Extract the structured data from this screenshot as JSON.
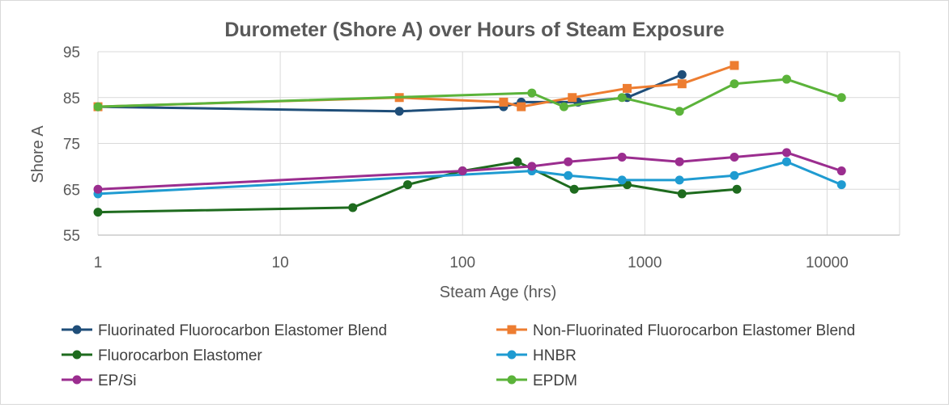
{
  "chart_data": {
    "type": "line",
    "title": "Durometer (Shore A) over Hours of Steam Exposure",
    "xlabel": "Steam Age (hrs)",
    "ylabel": "Shore A",
    "x_scale": "log",
    "xlim": [
      1,
      25000
    ],
    "ylim": [
      55,
      95
    ],
    "x_ticks": [
      1,
      10,
      100,
      1000,
      10000
    ],
    "x_tick_labels": [
      "1",
      "10",
      "100",
      "1000",
      "10000"
    ],
    "y_ticks": [
      55,
      65,
      75,
      85,
      95
    ],
    "y_tick_labels": [
      "55",
      "65",
      "75",
      "85",
      "95"
    ],
    "grid": true,
    "legend_position": "bottom",
    "series": [
      {
        "name": "Fluorinated Fluorocarbon Elastomer Blend",
        "color": "#1f4e79",
        "marker": "circle",
        "points": [
          [
            1,
            83
          ],
          [
            45,
            82
          ],
          [
            168,
            83
          ],
          [
            210,
            84
          ],
          [
            430,
            84
          ],
          [
            800,
            85
          ],
          [
            1600,
            90
          ]
        ]
      },
      {
        "name": "Non-Fluorinated Fluorocarbon Elastomer Blend",
        "color": "#ed7d31",
        "marker": "square",
        "points": [
          [
            1,
            83
          ],
          [
            45,
            85
          ],
          [
            168,
            84
          ],
          [
            210,
            83
          ],
          [
            400,
            85
          ],
          [
            800,
            87
          ],
          [
            1600,
            88
          ],
          [
            3100,
            92
          ]
        ]
      },
      {
        "name": "Fluorocarbon Elastomer",
        "color": "#1e6b1e",
        "marker": "circle",
        "points": [
          [
            1,
            60
          ],
          [
            25,
            61
          ],
          [
            50,
            66
          ],
          [
            100,
            69
          ],
          [
            200,
            71
          ],
          [
            410,
            65
          ],
          [
            800,
            66
          ],
          [
            1600,
            64
          ],
          [
            3200,
            65
          ]
        ]
      },
      {
        "name": "HNBR",
        "color": "#1f9bd1",
        "marker": "circle",
        "points": [
          [
            1,
            64
          ],
          [
            240,
            69
          ],
          [
            380,
            68
          ],
          [
            750,
            67
          ],
          [
            1550,
            67
          ],
          [
            3100,
            68
          ],
          [
            6000,
            71
          ],
          [
            12000,
            66
          ]
        ]
      },
      {
        "name": "EP/Si",
        "color": "#9b2d8f",
        "marker": "circle",
        "points": [
          [
            1,
            65
          ],
          [
            100,
            69
          ],
          [
            240,
            70
          ],
          [
            380,
            71
          ],
          [
            750,
            72
          ],
          [
            1550,
            71
          ],
          [
            3100,
            72
          ],
          [
            6000,
            73
          ],
          [
            12000,
            69
          ]
        ]
      },
      {
        "name": "EPDM",
        "color": "#5bb33a",
        "marker": "circle",
        "points": [
          [
            1,
            83
          ],
          [
            240,
            86
          ],
          [
            360,
            83
          ],
          [
            750,
            85
          ],
          [
            1550,
            82
          ],
          [
            3100,
            88
          ],
          [
            6000,
            89
          ],
          [
            12000,
            85
          ]
        ]
      }
    ]
  }
}
